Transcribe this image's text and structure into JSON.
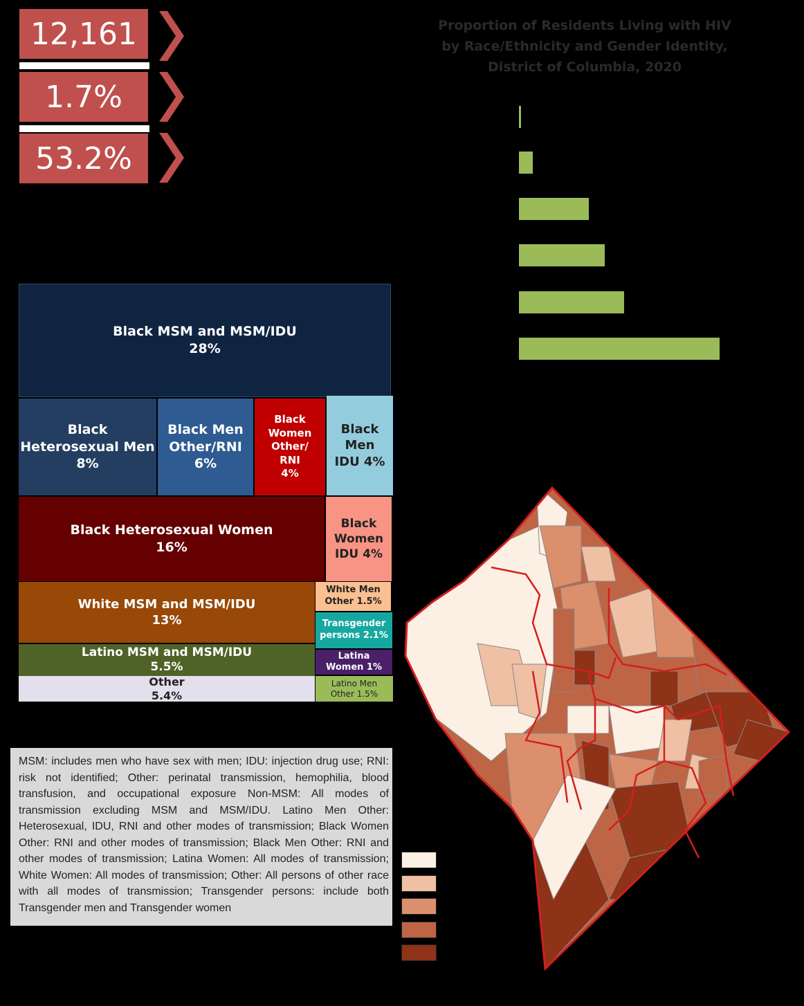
{
  "stats": [
    {
      "value": "12,161"
    },
    {
      "value": "1.7%"
    },
    {
      "value": "53.2%"
    }
  ],
  "colors": {
    "stat_box": "#c0504d",
    "bar": "#9bbb59",
    "map_border": "#d21f1f"
  },
  "chart_data": [
    {
      "type": "bar",
      "orientation": "horizontal",
      "title": "Proportion of Residents Living with HIV\nby Race/Ethnicity and Gender Identity,\nDistrict of Columbia, 2020",
      "categories": [
        "",
        "",
        "",
        "",
        "",
        ""
      ],
      "values": [
        0.1,
        0.7,
        3.5,
        4.3,
        5.3,
        10.1
      ],
      "xlim": [
        0,
        12
      ],
      "xlabel": "",
      "ylabel": "",
      "grid": false
    },
    {
      "type": "treemap",
      "cells": [
        {
          "label": "Black MSM and MSM/IDU",
          "value": "28%",
          "color": "#0f2440"
        },
        {
          "label": "Black\nHeterosexual Men",
          "value": "8%",
          "color": "#233e60"
        },
        {
          "label": "Black Men\nOther/RNI",
          "value": "6%",
          "color": "#2e5b92"
        },
        {
          "label": "Black\nWomen\nOther/\nRNI",
          "value": "4%",
          "color": "#c00000"
        },
        {
          "label": "Black\nMen\nIDU 4%",
          "value": "",
          "color": "#93cddd"
        },
        {
          "label": "Black Heterosexual Women",
          "value": "16%",
          "color": "#640000"
        },
        {
          "label": "Black\nWomen\nIDU 4%",
          "value": "",
          "color": "#f79484"
        },
        {
          "label": "White MSM and MSM/IDU",
          "value": "13%",
          "color": "#984807"
        },
        {
          "label": "White Men\nOther 1.5%",
          "value": "",
          "color": "#fac090"
        },
        {
          "label": "Transgender\npersons 2.1%",
          "value": "",
          "color": "#16a8a0"
        },
        {
          "label": "Latino MSM and MSM/IDU",
          "value": "5.5%",
          "color": "#4f6228"
        },
        {
          "label": "Latina\nWomen 1%",
          "value": "",
          "color": "#4a2068"
        },
        {
          "label": "Other",
          "value": "5.4%",
          "color": "#e4dfec"
        },
        {
          "label": "Latino Men\nOther 1.5%",
          "value": "",
          "color": "#9bbb59"
        }
      ]
    }
  ],
  "note": "MSM: includes men who have sex with men; IDU: injection drug use; RNI: risk not identified; Other: perinatal transmission, hemophilia, blood transfusion, and occupational exposure Non-MSM: All modes of transmission excluding MSM and MSM/IDU. Latino Men Other: Heterosexual, IDU, RNI and other modes of transmission; Black Women Other: RNI and other modes of transmission; Black Men Other: RNI and other modes of transmission; Latina Women: All modes of transmission; White Women: All modes of transmission; Other: All persons of other race with all modes of transmission; Transgender persons: include both Transgender men and Transgender women",
  "map_legend": {
    "colors": [
      "#fcefe3",
      "#efc0a4",
      "#dc8f6c",
      "#be6545",
      "#8e3218"
    ]
  }
}
